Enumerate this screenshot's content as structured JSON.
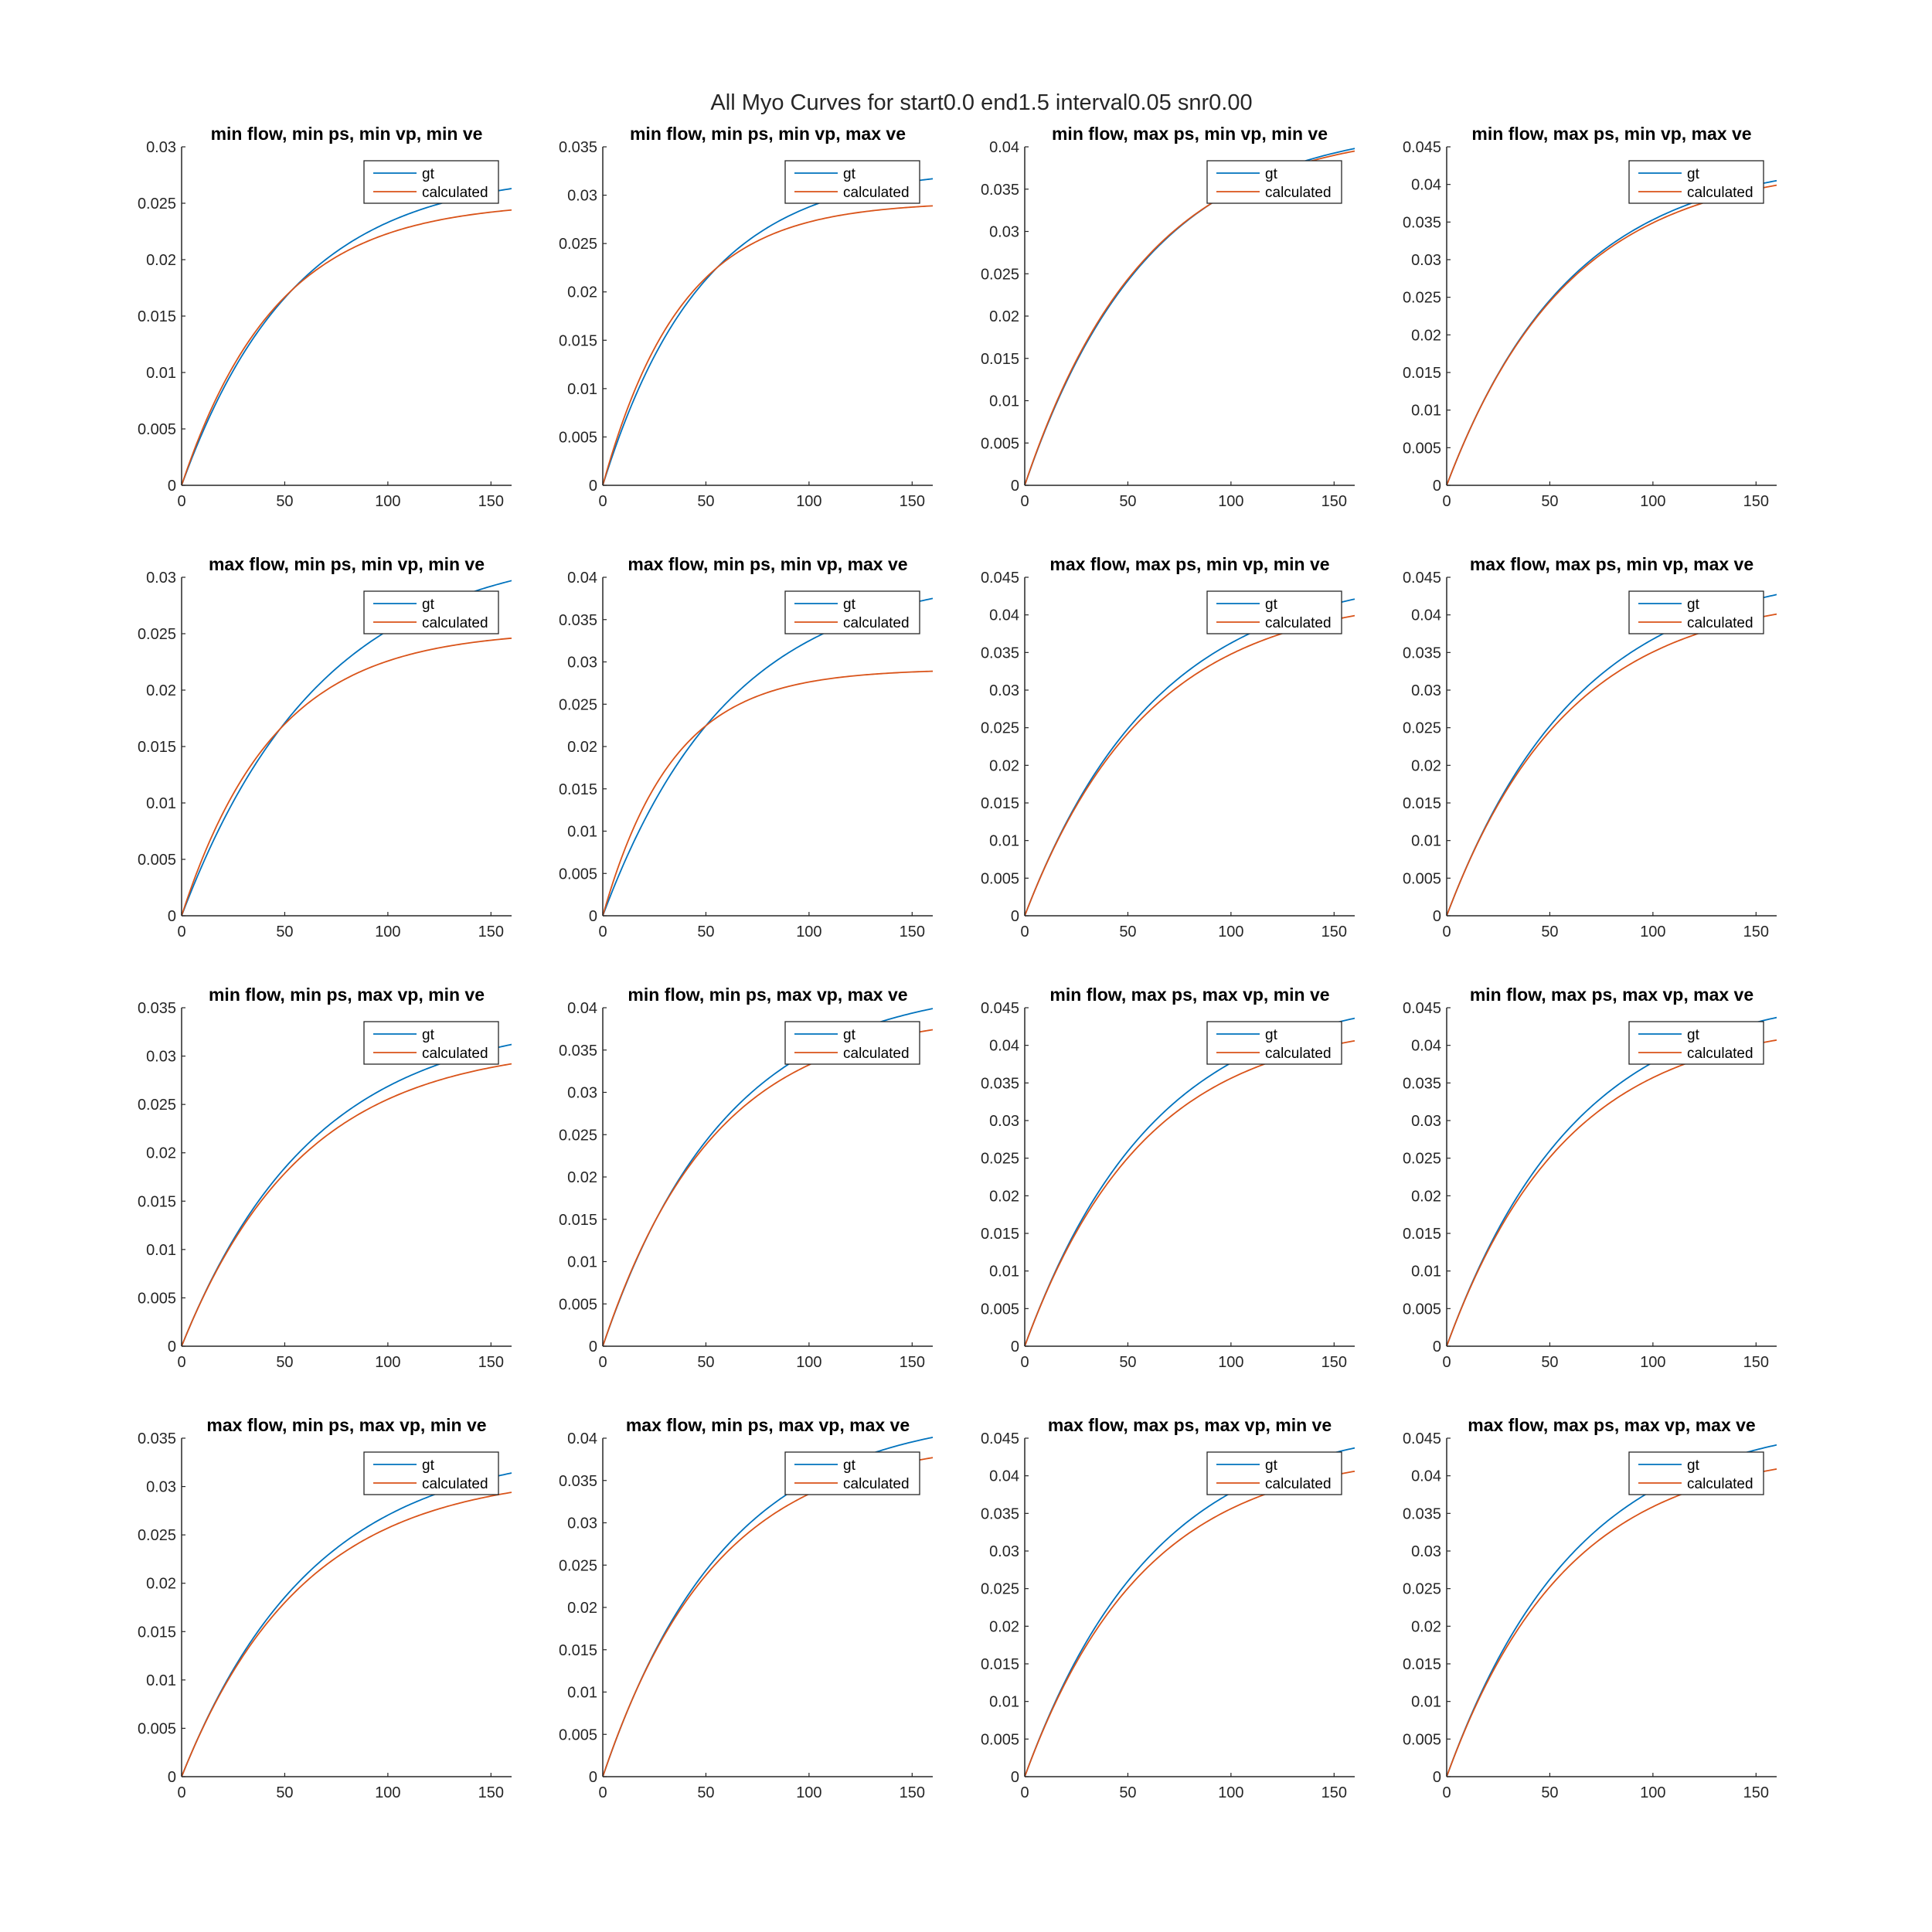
{
  "figure": {
    "title": "All Myo Curves for start0.0 end1.5 interval0.05 snr0.00"
  },
  "colors": {
    "gt": "#0072BD",
    "calculated": "#D95319"
  },
  "chart_data": [
    {
      "type": "line",
      "title": "min flow, min ps, min vp, min ve",
      "xlim": [
        0,
        160
      ],
      "ylim": [
        0,
        0.03
      ],
      "xticks": [
        "0",
        "50",
        "100",
        "150"
      ],
      "yticks": [
        "0",
        "0.005",
        "0.01",
        "0.015",
        "0.02",
        "0.025",
        "0.03"
      ],
      "legend": [
        "gt",
        "calculated"
      ],
      "legend_position": "top-right",
      "series": [
        {
          "name": "gt",
          "y_end": 0.0263,
          "tau": 55
        },
        {
          "name": "calculated",
          "y_end": 0.0244,
          "tau": 46
        }
      ]
    },
    {
      "type": "line",
      "title": "min flow, min ps, min vp, max ve",
      "xlim": [
        0,
        160
      ],
      "ylim": [
        0,
        0.035
      ],
      "xticks": [
        "0",
        "50",
        "100",
        "150"
      ],
      "yticks": [
        "0",
        "0.005",
        "0.01",
        "0.015",
        "0.02",
        "0.025",
        "0.03",
        "0.035"
      ],
      "legend": [
        "gt",
        "calculated"
      ],
      "legend_position": "top-right",
      "series": [
        {
          "name": "gt",
          "y_end": 0.0317,
          "tau": 48
        },
        {
          "name": "calculated",
          "y_end": 0.0289,
          "tau": 38
        }
      ]
    },
    {
      "type": "line",
      "title": "min flow, max ps, min vp, min ve",
      "xlim": [
        0,
        160
      ],
      "ylim": [
        0,
        0.04
      ],
      "xticks": [
        "0",
        "50",
        "100",
        "150"
      ],
      "yticks": [
        "0",
        "0.005",
        "0.01",
        "0.015",
        "0.02",
        "0.025",
        "0.03",
        "0.035",
        "0.04"
      ],
      "legend": [
        "gt",
        "calculated"
      ],
      "legend_position": "top-right",
      "series": [
        {
          "name": "gt",
          "y_end": 0.0398,
          "tau": 60
        },
        {
          "name": "calculated",
          "y_end": 0.0395,
          "tau": 58
        }
      ]
    },
    {
      "type": "line",
      "title": "min flow, max ps, min vp, max ve",
      "xlim": [
        0,
        160
      ],
      "ylim": [
        0,
        0.045
      ],
      "xticks": [
        "0",
        "50",
        "100",
        "150"
      ],
      "yticks": [
        "0",
        "0.005",
        "0.01",
        "0.015",
        "0.02",
        "0.025",
        "0.03",
        "0.035",
        "0.04",
        "0.045"
      ],
      "legend": [
        "gt",
        "calculated"
      ],
      "legend_position": "top-right",
      "series": [
        {
          "name": "gt",
          "y_end": 0.0405,
          "tau": 60
        },
        {
          "name": "calculated",
          "y_end": 0.0399,
          "tau": 59
        }
      ]
    },
    {
      "type": "line",
      "title": "max flow, min ps, min vp, min ve",
      "xlim": [
        0,
        160
      ],
      "ylim": [
        0,
        0.03
      ],
      "xticks": [
        "0",
        "50",
        "100",
        "150"
      ],
      "yticks": [
        "0",
        "0.005",
        "0.01",
        "0.015",
        "0.02",
        "0.025",
        "0.03"
      ],
      "legend": [
        "gt",
        "calculated"
      ],
      "legend_position": "top-right",
      "series": [
        {
          "name": "gt",
          "y_end": 0.0297,
          "tau": 68
        },
        {
          "name": "calculated",
          "y_end": 0.0246,
          "tau": 45
        }
      ]
    },
    {
      "type": "line",
      "title": "max flow, min ps, min vp, max ve",
      "xlim": [
        0,
        160
      ],
      "ylim": [
        0,
        0.04
      ],
      "xticks": [
        "0",
        "50",
        "100",
        "150"
      ],
      "yticks": [
        "0",
        "0.005",
        "0.01",
        "0.015",
        "0.02",
        "0.025",
        "0.03",
        "0.035",
        "0.04"
      ],
      "legend": [
        "gt",
        "calculated"
      ],
      "legend_position": "top-right",
      "series": [
        {
          "name": "gt",
          "y_end": 0.0375,
          "tau": 62
        },
        {
          "name": "calculated",
          "y_end": 0.0289,
          "tau": 34
        }
      ]
    },
    {
      "type": "line",
      "title": "max flow, max ps, min vp, min ve",
      "xlim": [
        0,
        160
      ],
      "ylim": [
        0,
        0.045
      ],
      "xticks": [
        "0",
        "50",
        "100",
        "150"
      ],
      "yticks": [
        "0",
        "0.005",
        "0.01",
        "0.015",
        "0.02",
        "0.025",
        "0.03",
        "0.035",
        "0.04",
        "0.045"
      ],
      "legend": [
        "gt",
        "calculated"
      ],
      "legend_position": "top-right",
      "series": [
        {
          "name": "gt",
          "y_end": 0.0421,
          "tau": 64
        },
        {
          "name": "calculated",
          "y_end": 0.0399,
          "tau": 60
        }
      ]
    },
    {
      "type": "line",
      "title": "max flow, max ps, min vp, max ve",
      "xlim": [
        0,
        160
      ],
      "ylim": [
        0,
        0.045
      ],
      "xticks": [
        "0",
        "50",
        "100",
        "150"
      ],
      "yticks": [
        "0",
        "0.005",
        "0.01",
        "0.015",
        "0.02",
        "0.025",
        "0.03",
        "0.035",
        "0.04",
        "0.045"
      ],
      "legend": [
        "gt",
        "calculated"
      ],
      "legend_position": "top-right",
      "series": [
        {
          "name": "gt",
          "y_end": 0.0427,
          "tau": 64
        },
        {
          "name": "calculated",
          "y_end": 0.0401,
          "tau": 59
        }
      ]
    },
    {
      "type": "line",
      "title": "min flow, min ps, max vp, min ve",
      "xlim": [
        0,
        160
      ],
      "ylim": [
        0,
        0.035
      ],
      "xticks": [
        "0",
        "50",
        "100",
        "150"
      ],
      "yticks": [
        "0",
        "0.005",
        "0.01",
        "0.015",
        "0.02",
        "0.025",
        "0.03",
        "0.035"
      ],
      "legend": [
        "gt",
        "calculated"
      ],
      "legend_position": "top-right",
      "series": [
        {
          "name": "gt",
          "y_end": 0.0312,
          "tau": 64
        },
        {
          "name": "calculated",
          "y_end": 0.0292,
          "tau": 59
        }
      ]
    },
    {
      "type": "line",
      "title": "min flow, min ps, max vp, max ve",
      "xlim": [
        0,
        160
      ],
      "ylim": [
        0,
        0.04
      ],
      "xticks": [
        "0",
        "50",
        "100",
        "150"
      ],
      "yticks": [
        "0",
        "0.005",
        "0.01",
        "0.015",
        "0.02",
        "0.025",
        "0.03",
        "0.035",
        "0.04"
      ],
      "legend": [
        "gt",
        "calculated"
      ],
      "legend_position": "top-right",
      "series": [
        {
          "name": "gt",
          "y_end": 0.0399,
          "tau": 60
        },
        {
          "name": "calculated",
          "y_end": 0.0374,
          "tau": 54
        }
      ]
    },
    {
      "type": "line",
      "title": "min flow, max ps, max vp, min ve",
      "xlim": [
        0,
        160
      ],
      "ylim": [
        0,
        0.045
      ],
      "xticks": [
        "0",
        "50",
        "100",
        "150"
      ],
      "yticks": [
        "0",
        "0.005",
        "0.01",
        "0.015",
        "0.02",
        "0.025",
        "0.03",
        "0.035",
        "0.04",
        "0.045"
      ],
      "legend": [
        "gt",
        "calculated"
      ],
      "legend_position": "top-right",
      "series": [
        {
          "name": "gt",
          "y_end": 0.0436,
          "tau": 63
        },
        {
          "name": "calculated",
          "y_end": 0.0406,
          "tau": 58
        }
      ]
    },
    {
      "type": "line",
      "title": "min flow, max ps, max vp, max ve",
      "xlim": [
        0,
        160
      ],
      "ylim": [
        0,
        0.045
      ],
      "xticks": [
        "0",
        "50",
        "100",
        "150"
      ],
      "yticks": [
        "0",
        "0.005",
        "0.01",
        "0.015",
        "0.02",
        "0.025",
        "0.03",
        "0.035",
        "0.04",
        "0.045"
      ],
      "legend": [
        "gt",
        "calculated"
      ],
      "legend_position": "top-right",
      "series": [
        {
          "name": "gt",
          "y_end": 0.0437,
          "tau": 63
        },
        {
          "name": "calculated",
          "y_end": 0.0407,
          "tau": 58
        }
      ]
    },
    {
      "type": "line",
      "title": "max flow, min ps, max vp, min ve",
      "xlim": [
        0,
        160
      ],
      "ylim": [
        0,
        0.035
      ],
      "xticks": [
        "0",
        "50",
        "100",
        "150"
      ],
      "yticks": [
        "0",
        "0.005",
        "0.01",
        "0.015",
        "0.02",
        "0.025",
        "0.03",
        "0.035"
      ],
      "legend": [
        "gt",
        "calculated"
      ],
      "legend_position": "top-right",
      "series": [
        {
          "name": "gt",
          "y_end": 0.0314,
          "tau": 64
        },
        {
          "name": "calculated",
          "y_end": 0.0294,
          "tau": 59
        }
      ]
    },
    {
      "type": "line",
      "title": "max flow, min ps, max vp, max ve",
      "xlim": [
        0,
        160
      ],
      "ylim": [
        0,
        0.04
      ],
      "xticks": [
        "0",
        "50",
        "100",
        "150"
      ],
      "yticks": [
        "0",
        "0.005",
        "0.01",
        "0.015",
        "0.02",
        "0.025",
        "0.03",
        "0.035",
        "0.04"
      ],
      "legend": [
        "gt",
        "calculated"
      ],
      "legend_position": "top-right",
      "series": [
        {
          "name": "gt",
          "y_end": 0.0401,
          "tau": 60
        },
        {
          "name": "calculated",
          "y_end": 0.0377,
          "tau": 55
        }
      ]
    },
    {
      "type": "line",
      "title": "max flow, max ps, max vp, min ve",
      "xlim": [
        0,
        160
      ],
      "ylim": [
        0,
        0.045
      ],
      "xticks": [
        "0",
        "50",
        "100",
        "150"
      ],
      "yticks": [
        "0",
        "0.005",
        "0.01",
        "0.015",
        "0.02",
        "0.025",
        "0.03",
        "0.035",
        "0.04",
        "0.045"
      ],
      "legend": [
        "gt",
        "calculated"
      ],
      "legend_position": "top-right",
      "series": [
        {
          "name": "gt",
          "y_end": 0.0437,
          "tau": 63
        },
        {
          "name": "calculated",
          "y_end": 0.0406,
          "tau": 58
        }
      ]
    },
    {
      "type": "line",
      "title": "max flow, max ps, max vp, max ve",
      "xlim": [
        0,
        160
      ],
      "ylim": [
        0,
        0.045
      ],
      "xticks": [
        "0",
        "50",
        "100",
        "150"
      ],
      "yticks": [
        "0",
        "0.005",
        "0.01",
        "0.015",
        "0.02",
        "0.025",
        "0.03",
        "0.035",
        "0.04",
        "0.045"
      ],
      "legend": [
        "gt",
        "calculated"
      ],
      "legend_position": "top-right",
      "series": [
        {
          "name": "gt",
          "y_end": 0.0441,
          "tau": 63
        },
        {
          "name": "calculated",
          "y_end": 0.0409,
          "tau": 58
        }
      ]
    }
  ]
}
